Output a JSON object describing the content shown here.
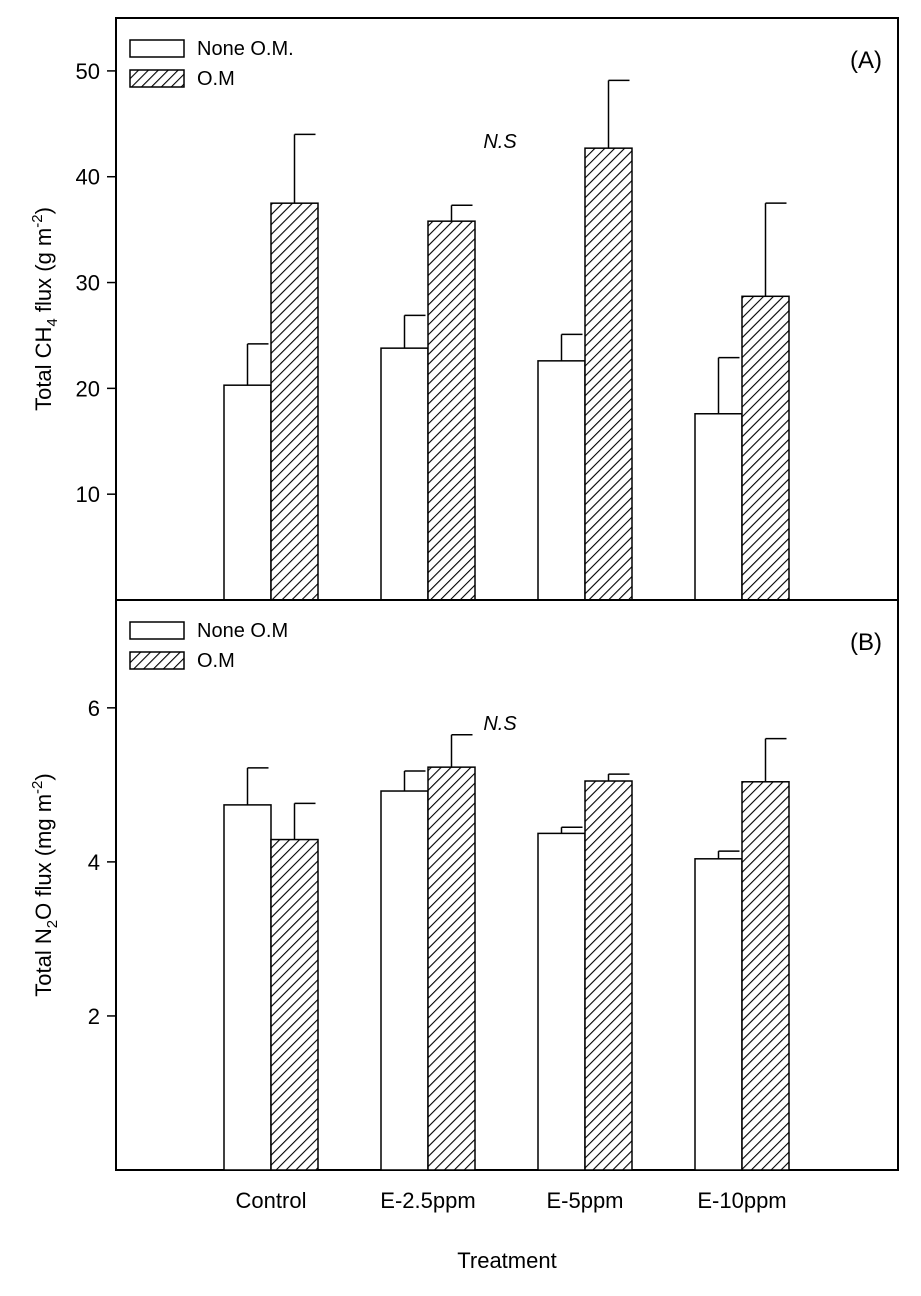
{
  "chart_data": [
    {
      "type": "bar",
      "panel_label": "(A)",
      "annotation": "N.S",
      "ylabel_parts": [
        "Total CH",
        "4",
        " flux (g m",
        "-2",
        ")"
      ],
      "categories": [
        "Control",
        "E-2.5ppm",
        "E-5ppm",
        "E-10ppm"
      ],
      "ylim": [
        0,
        55
      ],
      "yticks": [
        10,
        20,
        30,
        40,
        50
      ],
      "legend_position": "top-left",
      "series": [
        {
          "name": "None O.M.",
          "pattern": "none",
          "values": [
            20.3,
            23.8,
            22.6,
            17.6
          ],
          "errors": [
            3.9,
            3.1,
            2.5,
            5.3
          ]
        },
        {
          "name": "O.M",
          "pattern": "hatch",
          "values": [
            37.5,
            35.8,
            42.7,
            28.7
          ],
          "errors": [
            6.5,
            1.5,
            6.4,
            8.8
          ]
        }
      ]
    },
    {
      "type": "bar",
      "panel_label": "(B)",
      "annotation": "N.S",
      "ylabel_parts": [
        "Total N",
        "2",
        "O flux (mg m",
        "-2",
        ")"
      ],
      "xlabel": "Treatment",
      "categories": [
        "Control",
        "E-2.5ppm",
        "E-5ppm",
        "E-10ppm"
      ],
      "ylim": [
        0,
        7.4
      ],
      "yticks": [
        2,
        4,
        6
      ],
      "legend_position": "top-left",
      "series": [
        {
          "name": "None O.M",
          "pattern": "none",
          "values": [
            4.74,
            4.92,
            4.37,
            4.04
          ],
          "errors": [
            0.48,
            0.26,
            0.08,
            0.1
          ]
        },
        {
          "name": "O.M",
          "pattern": "hatch",
          "values": [
            4.29,
            5.23,
            5.05,
            5.04
          ],
          "errors": [
            0.47,
            0.42,
            0.09,
            0.56
          ]
        }
      ]
    }
  ]
}
